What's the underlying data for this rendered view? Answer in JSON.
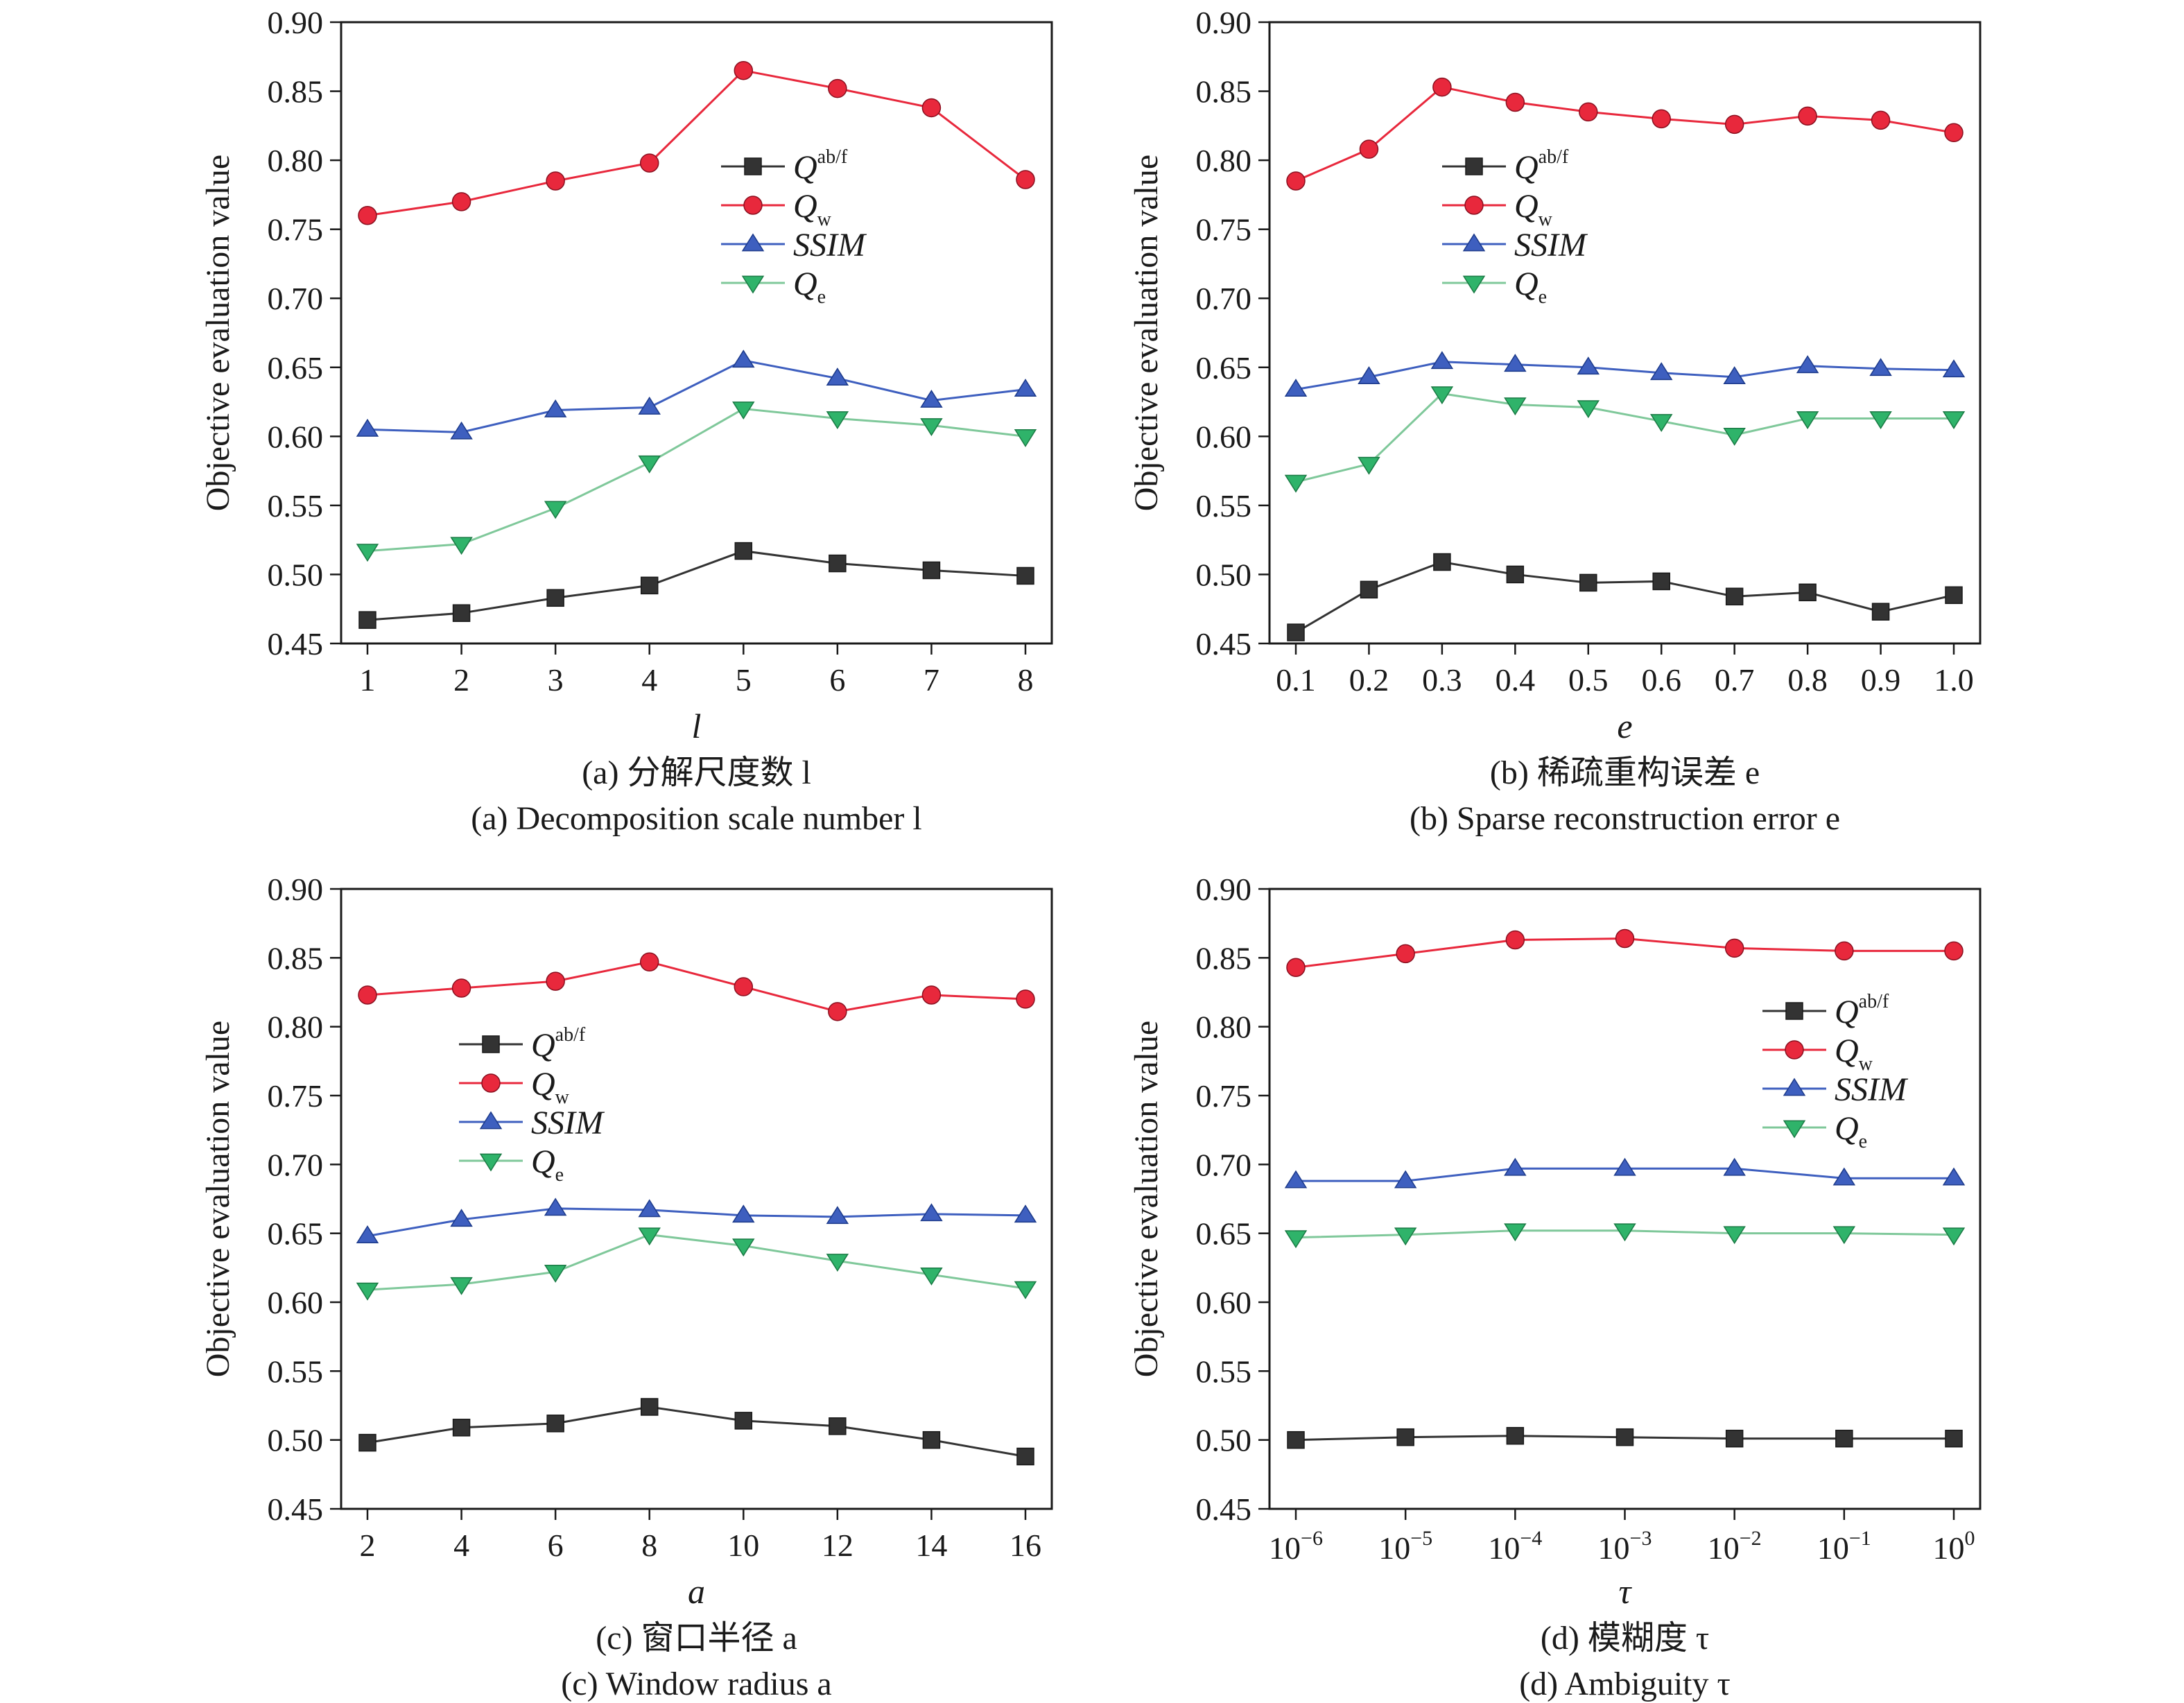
{
  "colors": {
    "q_abf": "#333333",
    "q_w": "#e8283c",
    "ssim": "#3e5fbf",
    "q_e": "#2fb36a",
    "axis": "#1a1a1a"
  },
  "legend": [
    {
      "key": "q_abf",
      "main": "Q",
      "sup": "ab/f",
      "sub": "",
      "marker": "square"
    },
    {
      "key": "q_w",
      "main": "Q",
      "sup": "",
      "sub": "w",
      "marker": "circle"
    },
    {
      "key": "ssim",
      "main": "SSIM",
      "sup": "",
      "sub": "",
      "marker": "triangle-up"
    },
    {
      "key": "q_e",
      "main": "Q",
      "sup": "",
      "sub": "e",
      "marker": "triangle-down"
    }
  ],
  "chart_data": [
    {
      "type": "line",
      "caption_cn": "(a) 分解尺度数 l",
      "caption_en": "(a) Decomposition scale number l",
      "xlabel": "l",
      "ylabel": "Objective evaluation value",
      "ylim": [
        0.45,
        0.9
      ],
      "yticks": [
        "0.90",
        "0.85",
        "0.80",
        "0.75",
        "0.70",
        "0.65",
        "0.60",
        "0.55",
        "0.50",
        "0.45"
      ],
      "categories": [
        "1",
        "2",
        "3",
        "4",
        "5",
        "6",
        "7",
        "8"
      ],
      "legend_position": "center-right",
      "series": [
        {
          "key": "q_abf",
          "name": "Qab/f",
          "values": [
            0.467,
            0.472,
            0.483,
            0.492,
            0.517,
            0.508,
            0.503,
            0.499
          ]
        },
        {
          "key": "q_w",
          "name": "Qw",
          "values": [
            0.76,
            0.77,
            0.785,
            0.798,
            0.865,
            0.852,
            0.838,
            0.786
          ]
        },
        {
          "key": "ssim",
          "name": "SSIM",
          "values": [
            0.605,
            0.603,
            0.619,
            0.621,
            0.655,
            0.642,
            0.626,
            0.634
          ]
        },
        {
          "key": "q_e",
          "name": "Qe",
          "values": [
            0.517,
            0.522,
            0.548,
            0.581,
            0.62,
            0.613,
            0.608,
            0.6
          ]
        }
      ]
    },
    {
      "type": "line",
      "caption_cn": "(b) 稀疏重构误差 e",
      "caption_en": "(b) Sparse reconstruction error e",
      "xlabel": "e",
      "ylabel": "Objective evaluation value",
      "ylim": [
        0.45,
        0.9
      ],
      "yticks": [
        "0.90",
        "0.85",
        "0.80",
        "0.75",
        "0.70",
        "0.65",
        "0.60",
        "0.55",
        "0.50",
        "0.45"
      ],
      "categories": [
        "0.1",
        "0.2",
        "0.3",
        "0.4",
        "0.5",
        "0.6",
        "0.7",
        "0.8",
        "0.9",
        "1.0"
      ],
      "legend_position": "upper-center",
      "series": [
        {
          "key": "q_abf",
          "name": "Qab/f",
          "values": [
            0.458,
            0.489,
            0.509,
            0.5,
            0.494,
            0.495,
            0.484,
            0.487,
            0.473,
            0.485
          ]
        },
        {
          "key": "q_w",
          "name": "Qw",
          "values": [
            0.785,
            0.808,
            0.853,
            0.842,
            0.835,
            0.83,
            0.826,
            0.832,
            0.829,
            0.82
          ]
        },
        {
          "key": "ssim",
          "name": "SSIM",
          "values": [
            0.634,
            0.643,
            0.654,
            0.652,
            0.65,
            0.646,
            0.643,
            0.651,
            0.649,
            0.648
          ]
        },
        {
          "key": "q_e",
          "name": "Qe",
          "values": [
            0.567,
            0.58,
            0.631,
            0.623,
            0.621,
            0.611,
            0.601,
            0.613,
            0.613,
            0.613
          ]
        }
      ]
    },
    {
      "type": "line",
      "caption_cn": "(c) 窗口半径 a",
      "caption_en": "(c) Window radius a",
      "xlabel": "a",
      "ylabel": "Objective evaluation value",
      "ylim": [
        0.45,
        0.9
      ],
      "yticks": [
        "0.90",
        "0.85",
        "0.80",
        "0.75",
        "0.70",
        "0.65",
        "0.60",
        "0.55",
        "0.50",
        "0.45"
      ],
      "categories": [
        "2",
        "4",
        "6",
        "8",
        "10",
        "12",
        "14",
        "16"
      ],
      "legend_position": "center-left",
      "series": [
        {
          "key": "q_abf",
          "name": "Qab/f",
          "values": [
            0.498,
            0.509,
            0.512,
            0.524,
            0.514,
            0.51,
            0.5,
            0.488
          ]
        },
        {
          "key": "q_w",
          "name": "Qw",
          "values": [
            0.823,
            0.828,
            0.833,
            0.847,
            0.829,
            0.811,
            0.823,
            0.82
          ]
        },
        {
          "key": "ssim",
          "name": "SSIM",
          "values": [
            0.648,
            0.66,
            0.668,
            0.667,
            0.663,
            0.662,
            0.664,
            0.663
          ]
        },
        {
          "key": "q_e",
          "name": "Qe",
          "values": [
            0.609,
            0.613,
            0.622,
            0.649,
            0.641,
            0.63,
            0.62,
            0.61
          ]
        }
      ]
    },
    {
      "type": "line",
      "caption_cn": "(d) 模糊度 τ",
      "caption_en": "(d) Ambiguity τ",
      "xlabel": "τ",
      "ylabel": "Objective evaluation value",
      "ylim": [
        0.45,
        0.9
      ],
      "yticks": [
        "0.90",
        "0.85",
        "0.80",
        "0.75",
        "0.70",
        "0.65",
        "0.60",
        "0.55",
        "0.50",
        "0.45"
      ],
      "x_scale": "log",
      "categories": [
        "10^-6",
        "10^-5",
        "10^-4",
        "10^-3",
        "10^-2",
        "10^-1",
        "10^0"
      ],
      "category_labels": [
        {
          "base": "10",
          "exp": "−6"
        },
        {
          "base": "10",
          "exp": "−5"
        },
        {
          "base": "10",
          "exp": "−4"
        },
        {
          "base": "10",
          "exp": "−3"
        },
        {
          "base": "10",
          "exp": "−2"
        },
        {
          "base": "10",
          "exp": "−1"
        },
        {
          "base": "10",
          "exp": "0"
        }
      ],
      "legend_position": "center-right",
      "series": [
        {
          "key": "q_abf",
          "name": "Qab/f",
          "values": [
            0.5,
            0.502,
            0.503,
            0.502,
            0.501,
            0.501,
            0.501
          ]
        },
        {
          "key": "q_w",
          "name": "Qw",
          "values": [
            0.843,
            0.853,
            0.863,
            0.864,
            0.857,
            0.855,
            0.855
          ]
        },
        {
          "key": "ssim",
          "name": "SSIM",
          "values": [
            0.688,
            0.688,
            0.697,
            0.697,
            0.697,
            0.69,
            0.69
          ]
        },
        {
          "key": "q_e",
          "name": "Qe",
          "values": [
            0.647,
            0.649,
            0.652,
            0.652,
            0.65,
            0.65,
            0.649
          ]
        }
      ]
    }
  ]
}
